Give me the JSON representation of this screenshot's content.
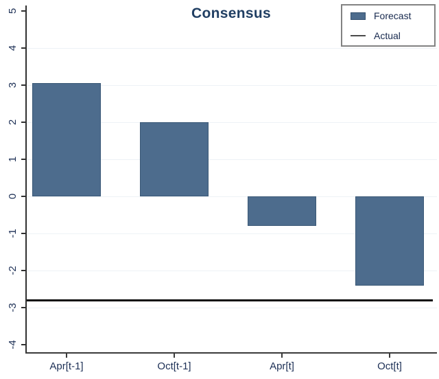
{
  "title": "Consensus",
  "legend": {
    "items": [
      {
        "label": "Forecast",
        "swatch": "bar-swatch-icon",
        "color": "#4d6c8d"
      },
      {
        "label": "Actual",
        "swatch": "line-swatch-icon",
        "color": "#4a4a4a"
      }
    ]
  },
  "chart_data": {
    "type": "bar",
    "title": "Consensus",
    "categories": [
      "Apr[t-1]",
      "Oct[t-1]",
      "Apr[t]",
      "Oct[t]"
    ],
    "series": [
      {
        "name": "Forecast",
        "type": "bar",
        "values": [
          3.05,
          2.0,
          -0.8,
          -2.4
        ],
        "color": "#4d6c8d",
        "border_color": "#3a5876"
      },
      {
        "name": "Actual",
        "type": "line",
        "values": [
          -2.8,
          -2.8,
          -2.8,
          -2.8
        ],
        "color": "#0a0a0a"
      }
    ],
    "xlabel": "",
    "ylabel": "",
    "ylim": [
      -4,
      5
    ],
    "yticks": [
      5,
      4,
      3,
      2,
      1,
      0,
      -1,
      -2,
      -3,
      -4
    ],
    "ytick_labels": [
      "5",
      "4",
      "3",
      "2",
      "1",
      "0",
      "-1",
      "-2",
      "-3",
      "-4"
    ],
    "grid_values": [
      4,
      3,
      2,
      1,
      0,
      -1,
      -2,
      -3
    ],
    "grid": true,
    "legend_position": "top-right",
    "baseline": 0
  }
}
